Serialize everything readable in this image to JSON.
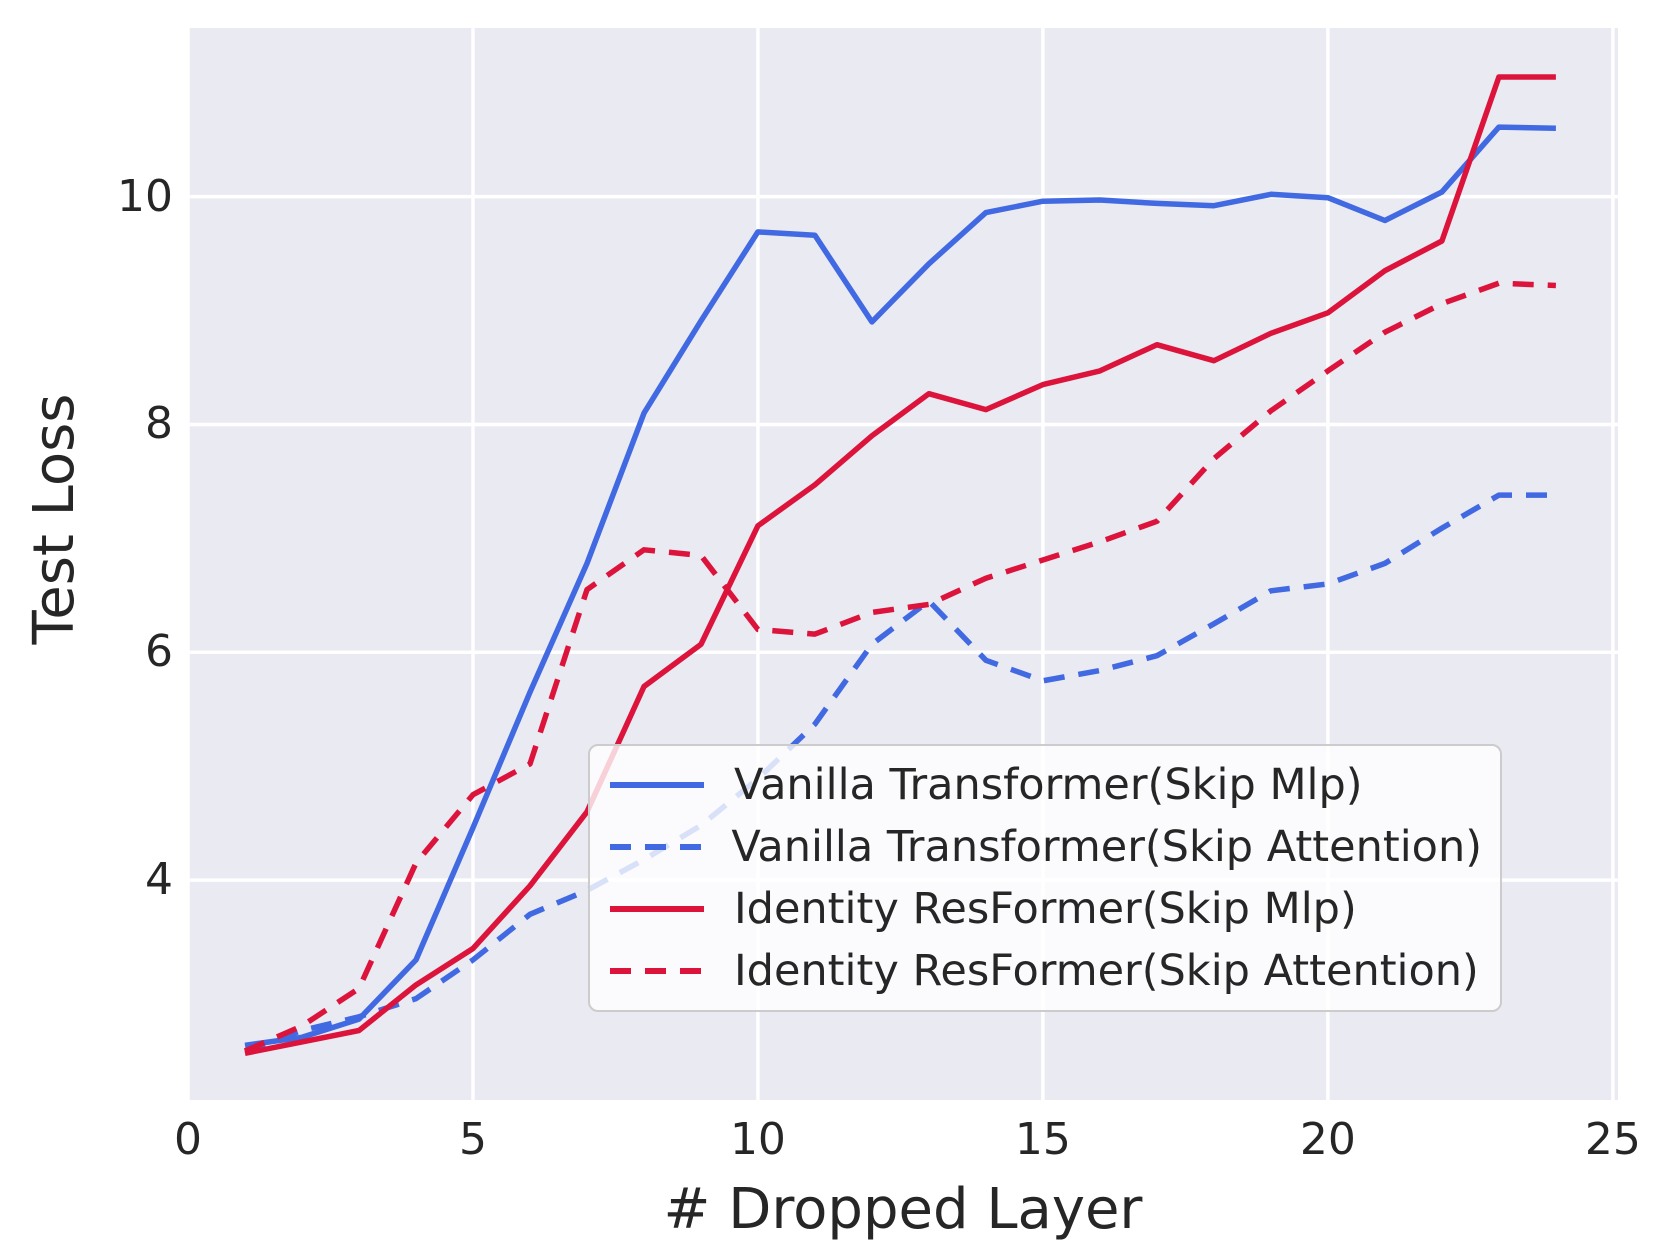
{
  "colors": {
    "figure_background": "#ffffff",
    "plot_background": "#EAEAF2",
    "gridline": "#ffffff",
    "text": "#262626",
    "blue": "#4169E1",
    "crimson": "#DC143C"
  },
  "chart_data": {
    "type": "line",
    "title": "",
    "xlabel": "# Dropped Layer",
    "ylabel": "Test Loss",
    "grid": true,
    "legend_position": "lower right",
    "xlim": [
      0,
      25.09
    ],
    "ylim": [
      2.07,
      11.48
    ],
    "xticks": [
      0,
      5,
      10,
      15,
      20,
      25
    ],
    "yticks": [
      4,
      6,
      8,
      10
    ],
    "x": [
      1,
      2,
      3,
      4,
      5,
      6,
      7,
      8,
      9,
      10,
      11,
      12,
      13,
      14,
      15,
      16,
      17,
      18,
      19,
      20,
      21,
      22,
      23,
      24
    ],
    "series": [
      {
        "name": "Vanilla Transformer(Skip Mlp)",
        "color": "#4169E1",
        "style": "solid",
        "values": [
          2.55,
          2.62,
          2.78,
          3.3,
          4.46,
          5.65,
          6.78,
          8.1,
          8.91,
          9.69,
          9.66,
          8.9,
          9.41,
          9.86,
          9.96,
          9.97,
          9.94,
          9.92,
          10.02,
          9.99,
          9.79,
          10.04,
          10.61,
          10.6
        ]
      },
      {
        "name": "Vanilla Transformer(Skip Attention)",
        "color": "#4169E1",
        "style": "dashed",
        "values": [
          2.5,
          2.68,
          2.8,
          2.96,
          3.3,
          3.7,
          3.91,
          4.18,
          4.48,
          4.89,
          5.37,
          6.07,
          6.45,
          5.93,
          5.75,
          5.84,
          5.97,
          6.25,
          6.54,
          6.6,
          6.78,
          7.09,
          7.38,
          7.38
        ]
      },
      {
        "name": "Identity ResFormer(Skip Mlp)",
        "color": "#DC143C",
        "style": "solid",
        "values": [
          2.48,
          2.58,
          2.68,
          3.08,
          3.4,
          3.95,
          4.6,
          5.7,
          6.07,
          7.11,
          7.47,
          7.9,
          8.27,
          8.13,
          8.35,
          8.47,
          8.7,
          8.56,
          8.8,
          8.98,
          9.35,
          9.61,
          11.05,
          11.05
        ]
      },
      {
        "name": "Identity ResFormer(Skip Attention)",
        "color": "#DC143C",
        "style": "dashed",
        "values": [
          2.5,
          2.72,
          3.05,
          4.15,
          4.75,
          5.02,
          6.55,
          6.9,
          6.85,
          6.2,
          6.16,
          6.35,
          6.42,
          6.65,
          6.81,
          6.97,
          7.15,
          7.7,
          8.12,
          8.47,
          8.81,
          9.06,
          9.24,
          9.22
        ]
      }
    ]
  }
}
